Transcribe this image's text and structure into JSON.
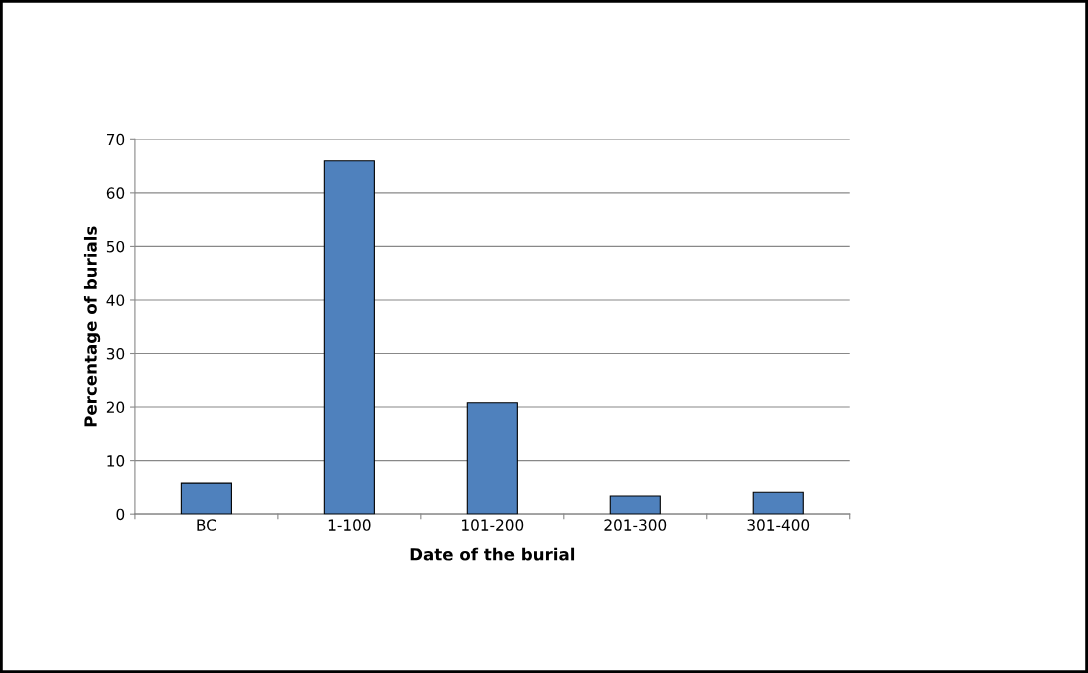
{
  "chart_data": {
    "type": "bar",
    "xlabel": "Date of the burial",
    "ylabel": "Percentage of burials",
    "categories": [
      "BC",
      "1-100",
      "101-200",
      "201-300",
      "301-400"
    ],
    "values": [
      5.8,
      66,
      20.8,
      3.4,
      4.1
    ],
    "color": "#4f81bd",
    "ylim": [
      0,
      70
    ],
    "yticks": [
      0,
      10,
      20,
      30,
      40,
      50,
      60,
      70
    ],
    "grid": "y",
    "legend": false
  }
}
